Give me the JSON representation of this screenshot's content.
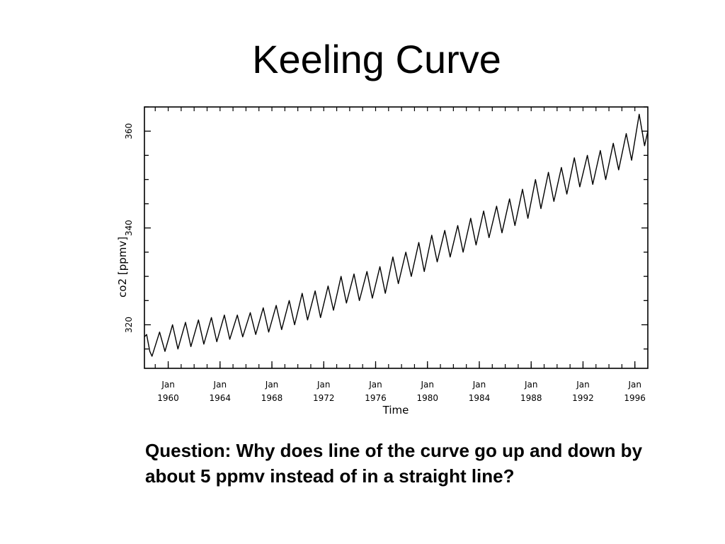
{
  "slide": {
    "title": "Keeling Curve",
    "question": "Question: Why does line of the curve go up and down by about 5 ppmv instead of in a straight line?"
  },
  "chart_data": {
    "type": "line",
    "title": "",
    "xlabel": "Time",
    "ylabel": "co2 [ppmv]",
    "xlim": [
      "1958-03",
      "1997-01"
    ],
    "ylim": [
      311,
      365
    ],
    "yticks": [
      320,
      340,
      360
    ],
    "grid": false,
    "xticks": [
      {
        "date": "1960-01",
        "line1": "Jan",
        "line2": "1960"
      },
      {
        "date": "1964-01",
        "line1": "Jan",
        "line2": "1964"
      },
      {
        "date": "1968-01",
        "line1": "Jan",
        "line2": "1968"
      },
      {
        "date": "1972-01",
        "line1": "Jan",
        "line2": "1972"
      },
      {
        "date": "1976-01",
        "line1": "Jan",
        "line2": "1976"
      },
      {
        "date": "1980-01",
        "line1": "Jan",
        "line2": "1980"
      },
      {
        "date": "1984-01",
        "line1": "Jan",
        "line2": "1984"
      },
      {
        "date": "1988-01",
        "line1": "Jan",
        "line2": "1988"
      },
      {
        "date": "1992-01",
        "line1": "Jan",
        "line2": "1992"
      },
      {
        "date": "1996-01",
        "line1": "Jan",
        "line2": "1996"
      }
    ],
    "series": [
      {
        "color": "#000000",
        "points": [
          [
            "1958-03",
            317.5
          ],
          [
            "1958-05",
            318.0
          ],
          [
            "1958-08",
            314.5
          ],
          [
            "1958-10",
            313.5
          ],
          [
            "1959-05",
            318.5
          ],
          [
            "1959-10",
            314.5
          ],
          [
            "1960-05",
            320.0
          ],
          [
            "1960-10",
            315.0
          ],
          [
            "1961-05",
            320.5
          ],
          [
            "1961-10",
            315.5
          ],
          [
            "1962-05",
            321.0
          ],
          [
            "1962-10",
            316.0
          ],
          [
            "1963-05",
            321.5
          ],
          [
            "1963-10",
            316.5
          ],
          [
            "1964-05",
            322.0
          ],
          [
            "1964-10",
            317.0
          ],
          [
            "1965-05",
            322.0
          ],
          [
            "1965-10",
            317.5
          ],
          [
            "1966-05",
            322.5
          ],
          [
            "1966-10",
            318.0
          ],
          [
            "1967-05",
            323.5
          ],
          [
            "1967-10",
            318.5
          ],
          [
            "1968-05",
            324.0
          ],
          [
            "1968-10",
            319.0
          ],
          [
            "1969-05",
            325.0
          ],
          [
            "1969-10",
            320.0
          ],
          [
            "1970-05",
            326.5
          ],
          [
            "1970-10",
            321.0
          ],
          [
            "1971-05",
            327.0
          ],
          [
            "1971-10",
            321.5
          ],
          [
            "1972-05",
            328.0
          ],
          [
            "1972-10",
            323.0
          ],
          [
            "1973-05",
            330.0
          ],
          [
            "1973-10",
            324.5
          ],
          [
            "1974-05",
            330.5
          ],
          [
            "1974-10",
            325.0
          ],
          [
            "1975-05",
            331.0
          ],
          [
            "1975-10",
            325.5
          ],
          [
            "1976-05",
            332.0
          ],
          [
            "1976-10",
            326.5
          ],
          [
            "1977-05",
            334.0
          ],
          [
            "1977-10",
            328.5
          ],
          [
            "1978-05",
            335.0
          ],
          [
            "1978-10",
            330.0
          ],
          [
            "1979-05",
            337.0
          ],
          [
            "1979-10",
            331.0
          ],
          [
            "1980-05",
            338.5
          ],
          [
            "1980-10",
            333.0
          ],
          [
            "1981-05",
            339.5
          ],
          [
            "1981-10",
            334.0
          ],
          [
            "1982-05",
            340.5
          ],
          [
            "1982-10",
            335.0
          ],
          [
            "1983-05",
            342.0
          ],
          [
            "1983-10",
            336.5
          ],
          [
            "1984-05",
            343.5
          ],
          [
            "1984-10",
            338.0
          ],
          [
            "1985-05",
            344.5
          ],
          [
            "1985-10",
            339.0
          ],
          [
            "1986-05",
            346.0
          ],
          [
            "1986-10",
            340.5
          ],
          [
            "1987-05",
            348.0
          ],
          [
            "1987-10",
            342.0
          ],
          [
            "1988-05",
            350.0
          ],
          [
            "1988-10",
            344.0
          ],
          [
            "1989-05",
            351.5
          ],
          [
            "1989-10",
            345.5
          ],
          [
            "1990-05",
            352.5
          ],
          [
            "1990-10",
            347.0
          ],
          [
            "1991-05",
            354.5
          ],
          [
            "1991-10",
            348.5
          ],
          [
            "1992-05",
            355.0
          ],
          [
            "1992-10",
            349.0
          ],
          [
            "1993-05",
            356.0
          ],
          [
            "1993-10",
            350.0
          ],
          [
            "1994-05",
            357.5
          ],
          [
            "1994-10",
            352.0
          ],
          [
            "1995-05",
            359.5
          ],
          [
            "1995-10",
            354.0
          ],
          [
            "1996-05",
            363.5
          ],
          [
            "1996-10",
            357.0
          ],
          [
            "1997-01",
            360.0
          ]
        ]
      }
    ]
  }
}
